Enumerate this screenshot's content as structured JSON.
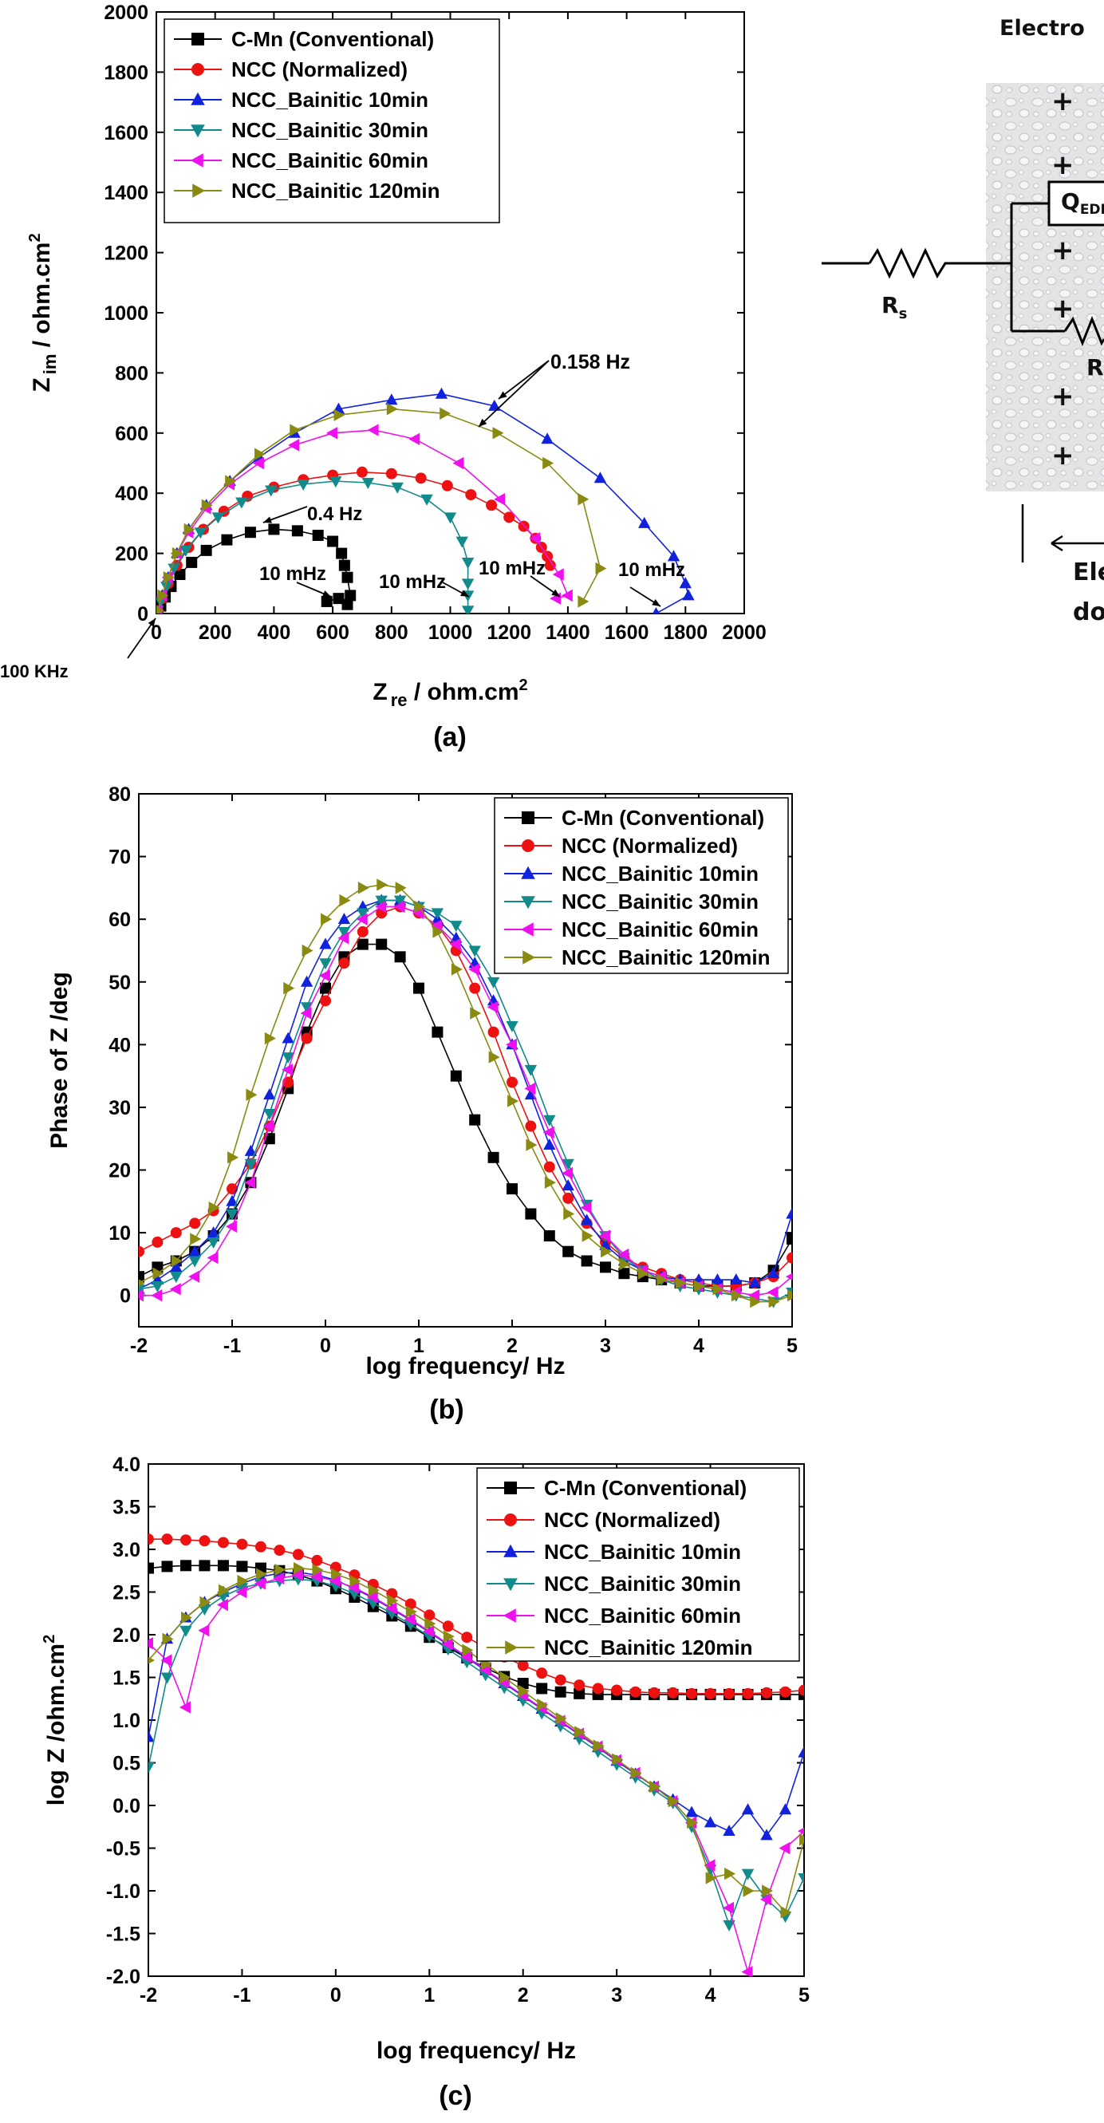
{
  "colors": {
    "C-Mn (Conventional)": "#000000",
    "NCC (Normalized)": "#ee1111",
    "NCC_Bainitic 10min": "#1122dd",
    "NCC_Bainitic 30min": "#108a8a",
    "NCC_Bainitic 60min": "#ee11ee",
    "NCC_Bainitic 120min": "#8a8a10"
  },
  "markers": {
    "C-Mn (Conventional)": "square",
    "NCC (Normalized)": "circle",
    "NCC_Bainitic 10min": "triangle-up",
    "NCC_Bainitic 30min": "triangle-down",
    "NCC_Bainitic 60min": "triangle-left",
    "NCC_Bainitic 120min": "triangle-right"
  },
  "circuit": {
    "title": "Electro",
    "rs": "R",
    "rs_sub": "s",
    "qdl": "Q",
    "qdl_sub": "EDL",
    "rct": "R",
    "plus": "+",
    "bottom_line1": "Ele",
    "bottom_line2": "do"
  },
  "chart_data": [
    {
      "panel": "(a)",
      "type": "scatter",
      "xlabel": "Z",
      "xlabel_sub": "re",
      "xlabel_unit": " / ohm.cm",
      "xlabel_sup": "2",
      "ylabel": "Z",
      "ylabel_sub": "im",
      "ylabel_unit": " / ohm.cm",
      "ylabel_sup": "2",
      "xlim": [
        0,
        2000
      ],
      "ylim": [
        0,
        2000
      ],
      "xticks": [
        "0",
        "200",
        "400",
        "600",
        "800",
        "1000",
        "1200",
        "1400",
        "1600",
        "1800",
        "2000"
      ],
      "yticks": [
        "0",
        "200",
        "400",
        "600",
        "800",
        "1000",
        "1200",
        "1400",
        "1600",
        "1800",
        "2000"
      ],
      "legend": "top-left",
      "annotations": [
        "0.158 Hz",
        "0.4 Hz",
        "10 mHz",
        "10 mHz",
        "10 mHz",
        "10 mHz",
        "100 KHz"
      ],
      "series": [
        {
          "name": "C-Mn (Conventional)",
          "x": [
            5,
            15,
            30,
            50,
            80,
            120,
            170,
            240,
            320,
            400,
            480,
            550,
            600,
            630,
            640,
            650,
            660,
            650,
            620,
            580
          ],
          "y": [
            5,
            25,
            55,
            90,
            130,
            170,
            210,
            245,
            270,
            280,
            275,
            260,
            240,
            200,
            160,
            120,
            60,
            30,
            50,
            40
          ]
        },
        {
          "name": "NCC (Normalized)",
          "x": [
            5,
            20,
            40,
            70,
            110,
            160,
            230,
            310,
            400,
            500,
            600,
            700,
            800,
            900,
            990,
            1070,
            1140,
            1200,
            1250,
            1290,
            1310,
            1330,
            1340
          ],
          "y": [
            10,
            50,
            100,
            160,
            220,
            280,
            340,
            390,
            420,
            445,
            460,
            470,
            465,
            450,
            425,
            395,
            360,
            320,
            290,
            250,
            220,
            190,
            160
          ]
        },
        {
          "name": "NCC_Bainitic 10min",
          "x": [
            5,
            20,
            40,
            70,
            110,
            170,
            250,
            350,
            470,
            620,
            800,
            970,
            1150,
            1330,
            1510,
            1660,
            1760,
            1800,
            1810,
            1700
          ],
          "y": [
            10,
            60,
            120,
            200,
            280,
            360,
            440,
            520,
            600,
            680,
            710,
            730,
            690,
            580,
            450,
            300,
            190,
            100,
            60,
            0
          ]
        },
        {
          "name": "NCC_Bainitic 30min",
          "x": [
            5,
            15,
            35,
            60,
            100,
            150,
            210,
            290,
            390,
            500,
            610,
            720,
            820,
            920,
            1000,
            1040,
            1060,
            1060,
            1060,
            1060
          ],
          "y": [
            10,
            40,
            90,
            150,
            210,
            270,
            320,
            370,
            410,
            430,
            440,
            435,
            420,
            380,
            320,
            240,
            170,
            100,
            60,
            10
          ]
        },
        {
          "name": "NCC_Bainitic 60min",
          "x": [
            5,
            20,
            40,
            70,
            110,
            170,
            250,
            350,
            470,
            600,
            740,
            880,
            1030,
            1170,
            1290,
            1370,
            1400,
            1360
          ],
          "y": [
            10,
            60,
            120,
            200,
            270,
            350,
            430,
            500,
            560,
            600,
            610,
            580,
            500,
            380,
            250,
            130,
            60,
            50
          ]
        },
        {
          "name": "NCC_Bainitic 120min",
          "x": [
            5,
            20,
            40,
            70,
            110,
            170,
            250,
            350,
            470,
            620,
            800,
            980,
            1160,
            1330,
            1450,
            1510,
            1450
          ],
          "y": [
            10,
            60,
            120,
            200,
            280,
            360,
            440,
            530,
            610,
            660,
            680,
            665,
            600,
            500,
            380,
            150,
            40
          ]
        }
      ]
    },
    {
      "panel": "(b)",
      "type": "line",
      "xlabel": "log frequency/ Hz",
      "ylabel": "Phase of Z /deg",
      "xlim": [
        -2,
        5
      ],
      "ylim": [
        -5,
        80
      ],
      "xticks": [
        "-2",
        "-1",
        "0",
        "1",
        "2",
        "3",
        "4",
        "5"
      ],
      "yticks": [
        "0",
        "10",
        "20",
        "30",
        "40",
        "50",
        "60",
        "70",
        "80"
      ],
      "legend": "top-right",
      "x": [
        -2,
        -1.8,
        -1.6,
        -1.4,
        -1.2,
        -1,
        -0.8,
        -0.6,
        -0.4,
        -0.2,
        0,
        0.2,
        0.4,
        0.6,
        0.8,
        1,
        1.2,
        1.4,
        1.6,
        1.8,
        2,
        2.2,
        2.4,
        2.6,
        2.8,
        3,
        3.2,
        3.4,
        3.6,
        3.8,
        4,
        4.2,
        4.4,
        4.6,
        4.8,
        5
      ],
      "series": [
        {
          "name": "C-Mn (Conventional)",
          "values": [
            3,
            4.5,
            5.5,
            7,
            9.5,
            13,
            18,
            25,
            33,
            42,
            49,
            54,
            56,
            56,
            54,
            49,
            42,
            35,
            28,
            22,
            17,
            13,
            9.5,
            7,
            5.5,
            4.5,
            3.5,
            3,
            2.5,
            2,
            1.5,
            1.5,
            1.5,
            2,
            4,
            9
          ]
        },
        {
          "name": "NCC (Normalized)",
          "values": [
            7,
            8.5,
            10,
            11.5,
            13.5,
            17,
            21,
            27,
            34,
            41,
            47,
            53,
            58,
            61,
            62,
            61,
            59,
            55,
            49,
            42,
            34,
            27,
            20.5,
            15.5,
            11.5,
            8.5,
            6,
            4.5,
            3.5,
            2.5,
            2,
            1.5,
            1.5,
            2,
            3,
            6
          ]
        },
        {
          "name": "NCC_Bainitic 10min",
          "values": [
            1,
            2.5,
            4.5,
            7,
            10,
            15,
            23,
            32,
            41,
            50,
            56,
            60,
            62,
            63,
            63,
            62,
            60,
            57,
            53,
            47,
            40,
            32,
            24,
            17.5,
            12,
            8,
            5.5,
            4,
            3,
            2.5,
            2.5,
            2.5,
            2.5,
            2,
            3.5,
            13
          ]
        },
        {
          "name": "NCC_Bainitic 30min",
          "values": [
            1,
            1.5,
            3,
            5.5,
            8.5,
            13,
            21,
            29,
            38,
            46,
            53,
            58,
            61,
            63,
            63,
            62,
            61,
            59,
            55,
            50,
            43,
            36,
            28,
            21,
            14.5,
            9.5,
            6,
            4,
            2.5,
            1.5,
            1,
            0.5,
            0,
            -0.5,
            -1,
            0.5
          ]
        },
        {
          "name": "NCC_Bainitic 60min",
          "values": [
            0,
            0,
            1,
            3,
            6,
            11,
            18,
            27,
            36,
            45,
            51,
            57,
            60,
            62,
            62,
            61,
            59,
            56,
            52,
            46,
            40,
            33,
            26,
            19.5,
            14,
            9.5,
            6.5,
            4,
            3,
            2,
            1.5,
            1,
            0.5,
            0,
            0.5,
            3
          ]
        },
        {
          "name": "NCC_Bainitic 120min",
          "values": [
            2,
            3.5,
            5.5,
            9,
            14,
            22,
            32,
            41,
            49,
            55,
            60,
            63,
            65,
            65.5,
            65,
            62,
            58,
            52,
            45,
            38,
            31,
            24,
            18,
            13,
            9.5,
            7,
            5,
            3.5,
            2.5,
            2,
            1.5,
            1,
            0,
            -1,
            -1,
            0
          ]
        }
      ]
    },
    {
      "panel": "(c)",
      "type": "line",
      "xlabel": "log frequency/ Hz",
      "ylabel": "log Z /ohm.cm",
      "ylabel_sup": "2",
      "xlim": [
        -2,
        5
      ],
      "ylim": [
        -2,
        4
      ],
      "xticks": [
        "-2",
        "-1",
        "0",
        "1",
        "2",
        "3",
        "4",
        "5"
      ],
      "yticks": [
        "-2.0",
        "-1.5",
        "-1.0",
        "-0.5",
        "0.0",
        "0.5",
        "1.0",
        "1.5",
        "2.0",
        "2.5",
        "3.0",
        "3.5",
        "4.0"
      ],
      "legend": "top-right",
      "x": [
        -2,
        -1.8,
        -1.6,
        -1.4,
        -1.2,
        -1,
        -0.8,
        -0.6,
        -0.4,
        -0.2,
        0,
        0.2,
        0.4,
        0.6,
        0.8,
        1,
        1.2,
        1.4,
        1.6,
        1.8,
        2,
        2.2,
        2.4,
        2.6,
        2.8,
        3,
        3.2,
        3.4,
        3.6,
        3.8,
        4,
        4.2,
        4.4,
        4.6,
        4.8,
        5
      ],
      "series": [
        {
          "name": "C-Mn (Conventional)",
          "values": [
            2.78,
            2.8,
            2.81,
            2.81,
            2.81,
            2.8,
            2.78,
            2.75,
            2.7,
            2.63,
            2.54,
            2.44,
            2.33,
            2.22,
            2.1,
            1.97,
            1.85,
            1.73,
            1.61,
            1.51,
            1.43,
            1.37,
            1.33,
            1.31,
            1.3,
            1.3,
            1.3,
            1.3,
            1.3,
            1.3,
            1.3,
            1.3,
            1.3,
            1.3,
            1.3,
            1.3
          ]
        },
        {
          "name": "NCC (Normalized)",
          "values": [
            3.12,
            3.12,
            3.11,
            3.1,
            3.08,
            3.06,
            3.03,
            2.99,
            2.94,
            2.87,
            2.79,
            2.7,
            2.59,
            2.48,
            2.36,
            2.23,
            2.1,
            1.97,
            1.85,
            1.74,
            1.64,
            1.55,
            1.47,
            1.41,
            1.37,
            1.35,
            1.33,
            1.32,
            1.32,
            1.31,
            1.31,
            1.31,
            1.31,
            1.32,
            1.33,
            1.35
          ]
        },
        {
          "name": "NCC_Bainitic 10min",
          "values": [
            0.8,
            1.95,
            2.2,
            2.38,
            2.5,
            2.6,
            2.68,
            2.72,
            2.73,
            2.7,
            2.64,
            2.54,
            2.43,
            2.3,
            2.17,
            2.03,
            1.88,
            1.73,
            1.58,
            1.43,
            1.28,
            1.13,
            0.98,
            0.83,
            0.68,
            0.52,
            0.37,
            0.22,
            0.07,
            -0.08,
            -0.2,
            -0.3,
            -0.05,
            -0.35,
            -0.05,
            0.62
          ]
        },
        {
          "name": "NCC_Bainitic 30min",
          "values": [
            0.45,
            1.5,
            2.05,
            2.3,
            2.45,
            2.55,
            2.6,
            2.63,
            2.65,
            2.63,
            2.57,
            2.48,
            2.37,
            2.25,
            2.12,
            1.98,
            1.83,
            1.68,
            1.53,
            1.38,
            1.23,
            1.08,
            0.93,
            0.78,
            0.63,
            0.48,
            0.33,
            0.18,
            0.03,
            -0.25,
            -0.75,
            -1.4,
            -0.8,
            -1.1,
            -1.3,
            -0.85
          ]
        },
        {
          "name": "NCC_Bainitic 60min",
          "values": [
            1.9,
            1.7,
            1.15,
            2.05,
            2.35,
            2.5,
            2.6,
            2.66,
            2.7,
            2.68,
            2.63,
            2.55,
            2.44,
            2.31,
            2.18,
            2.04,
            1.89,
            1.74,
            1.59,
            1.44,
            1.29,
            1.14,
            0.99,
            0.84,
            0.69,
            0.53,
            0.38,
            0.22,
            0.05,
            -0.2,
            -0.7,
            -1.2,
            -1.95,
            -1.1,
            -0.5,
            -0.3
          ]
        },
        {
          "name": "NCC_Bainitic 120min",
          "values": [
            1.7,
            1.95,
            2.2,
            2.38,
            2.52,
            2.63,
            2.71,
            2.76,
            2.78,
            2.76,
            2.71,
            2.63,
            2.52,
            2.4,
            2.27,
            2.13,
            1.98,
            1.82,
            1.66,
            1.5,
            1.34,
            1.18,
            1.02,
            0.86,
            0.7,
            0.54,
            0.38,
            0.22,
            0.05,
            -0.2,
            -0.85,
            -0.8,
            -1.0,
            -1.0,
            -1.25,
            -0.4
          ]
        }
      ]
    }
  ]
}
